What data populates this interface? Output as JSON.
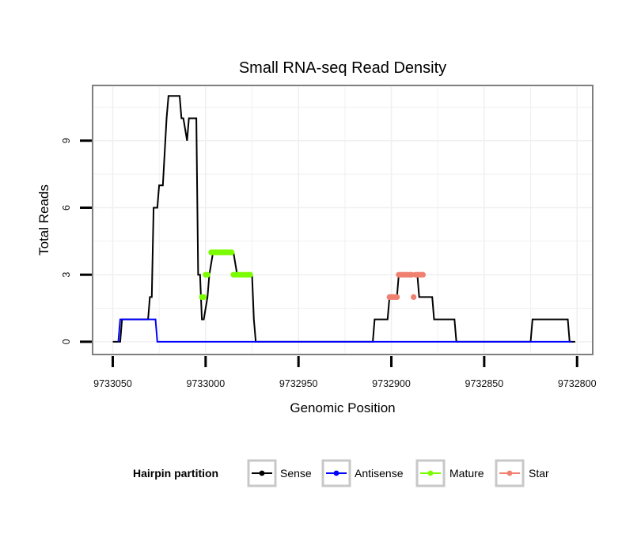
{
  "chart_data": {
    "type": "line",
    "title": "Small RNA-seq Read Density",
    "xlabel": "Genomic Position",
    "ylabel": "Total Reads",
    "xlim": [
      9733060,
      9732792
    ],
    "ylim": [
      -0.5,
      11.4
    ],
    "x_reversed": true,
    "xticks": [
      9733050,
      9733000,
      9732950,
      9732900,
      9732850,
      9732800
    ],
    "xtick_labels": [
      "9733050",
      "9733000",
      "9732950",
      "9732900",
      "9732850",
      "9732800"
    ],
    "yticks": [
      0,
      3,
      6,
      9
    ],
    "ytick_labels": [
      "0",
      "3",
      "6",
      "9"
    ],
    "grid": true,
    "legend": {
      "title": "Hairpin partition",
      "position": "bottom",
      "entries": [
        {
          "name": "Sense",
          "color": "#000000"
        },
        {
          "name": "Antisense",
          "color": "#0000ff"
        },
        {
          "name": "Mature",
          "color": "#7cfc00"
        },
        {
          "name": "Star",
          "color": "#f08070"
        }
      ]
    },
    "series": [
      {
        "name": "Sense",
        "color": "#000000",
        "style": "step-line",
        "points": [
          [
            9733050,
            0
          ],
          [
            9733046,
            0
          ],
          [
            9733045,
            1
          ],
          [
            9733031,
            1
          ],
          [
            9733030,
            2
          ],
          [
            9733029,
            2
          ],
          [
            9733028,
            6
          ],
          [
            9733026,
            6
          ],
          [
            9733025,
            7
          ],
          [
            9733023,
            7
          ],
          [
            9733021,
            10
          ],
          [
            9733020,
            11
          ],
          [
            9733014,
            11
          ],
          [
            9733013,
            10
          ],
          [
            9733012,
            10
          ],
          [
            9733010,
            9
          ],
          [
            9733009,
            10
          ],
          [
            9733005,
            10
          ],
          [
            9733004,
            3
          ],
          [
            9733003,
            3
          ],
          [
            9733002,
            1
          ],
          [
            9733001,
            1
          ],
          [
            9732999,
            2
          ],
          [
            9732998,
            3
          ],
          [
            9732996,
            4
          ],
          [
            9732985,
            4
          ],
          [
            9732983,
            3
          ],
          [
            9732975,
            3
          ],
          [
            9732974,
            1
          ],
          [
            9732973,
            0
          ],
          [
            9732910,
            0
          ],
          [
            9732909,
            1
          ],
          [
            9732902,
            1
          ],
          [
            9732901,
            2
          ],
          [
            9732897,
            2
          ],
          [
            9732896,
            3
          ],
          [
            9732886,
            3
          ],
          [
            9732885,
            2
          ],
          [
            9732878,
            2
          ],
          [
            9732877,
            1
          ],
          [
            9732866,
            1
          ],
          [
            9732865,
            0
          ],
          [
            9732825,
            0
          ],
          [
            9732824,
            1
          ],
          [
            9732805,
            1
          ],
          [
            9732804,
            0
          ],
          [
            9732801,
            0
          ]
        ]
      },
      {
        "name": "Antisense",
        "color": "#0000ff",
        "style": "step-line",
        "points": [
          [
            9733047,
            0
          ],
          [
            9733046,
            1
          ],
          [
            9733027,
            1
          ],
          [
            9733026,
            0
          ],
          [
            9732803,
            0
          ]
        ]
      },
      {
        "name": "Mature",
        "color": "#7cfc00",
        "style": "points",
        "points": [
          [
            9733002,
            2
          ],
          [
            9733001,
            2
          ],
          [
            9733000,
            3
          ],
          [
            9732999,
            3
          ],
          [
            9732997,
            4
          ],
          [
            9732996,
            4
          ],
          [
            9732995,
            4
          ],
          [
            9732994,
            4
          ],
          [
            9732993,
            4
          ],
          [
            9732992,
            4
          ],
          [
            9732991,
            4
          ],
          [
            9732990,
            4
          ],
          [
            9732989,
            4
          ],
          [
            9732988,
            4
          ],
          [
            9732987,
            4
          ],
          [
            9732986,
            4
          ],
          [
            9732985,
            3
          ],
          [
            9732984,
            3
          ],
          [
            9732983,
            3
          ],
          [
            9732982,
            3
          ],
          [
            9732981,
            3
          ],
          [
            9732980,
            3
          ],
          [
            9732979,
            3
          ],
          [
            9732978,
            3
          ],
          [
            9732977,
            3
          ],
          [
            9732976,
            3
          ]
        ]
      },
      {
        "name": "Star",
        "color": "#f08070",
        "style": "points",
        "points": [
          [
            9732901,
            2
          ],
          [
            9732900,
            2
          ],
          [
            9732899,
            2
          ],
          [
            9732898,
            2
          ],
          [
            9732897,
            2
          ],
          [
            9732896,
            3
          ],
          [
            9732895,
            3
          ],
          [
            9732894,
            3
          ],
          [
            9732893,
            3
          ],
          [
            9732892,
            3
          ],
          [
            9732891,
            3
          ],
          [
            9732890,
            3
          ],
          [
            9732889,
            3
          ],
          [
            9732888,
            2
          ],
          [
            9732887,
            3
          ],
          [
            9732886,
            3
          ],
          [
            9732885,
            3
          ],
          [
            9732884,
            3
          ],
          [
            9732883,
            3
          ]
        ]
      }
    ]
  }
}
